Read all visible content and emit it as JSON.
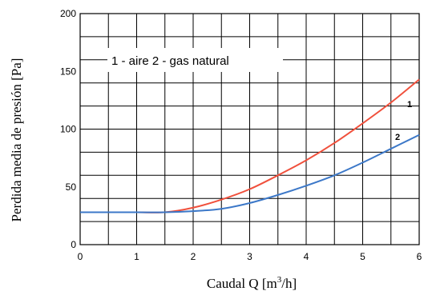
{
  "chart_data": {
    "type": "line",
    "title": "",
    "xlabel_main": "Caudal Q  [m",
    "xlabel_sup": "3",
    "xlabel_end": "/h]",
    "ylabel": "Perdida media de presión [Pa]",
    "xlim": [
      0,
      6
    ],
    "ylim": [
      0,
      200
    ],
    "x_ticks": [
      0,
      1,
      2,
      3,
      4,
      5,
      6
    ],
    "y_ticks": [
      0,
      50,
      100,
      150,
      200
    ],
    "grid": true,
    "legend_text": "1 - aire  2 - gas natural",
    "series": [
      {
        "name": "1",
        "color": "#f0503c",
        "x": [
          0,
          0.5,
          1,
          1.5,
          2,
          2.5,
          3,
          3.5,
          4,
          4.5,
          5,
          5.5,
          6
        ],
        "y": [
          28,
          28,
          28,
          28,
          32,
          39,
          48,
          60,
          73,
          88,
          105,
          123,
          143
        ]
      },
      {
        "name": "2",
        "color": "#3c78c8",
        "x": [
          0,
          0.5,
          1,
          1.5,
          2,
          2.5,
          3,
          3.5,
          4,
          4.5,
          5,
          5.5,
          6
        ],
        "y": [
          28,
          28,
          28,
          28,
          29,
          31,
          36,
          43,
          51,
          60,
          71,
          83,
          95
        ]
      }
    ]
  }
}
